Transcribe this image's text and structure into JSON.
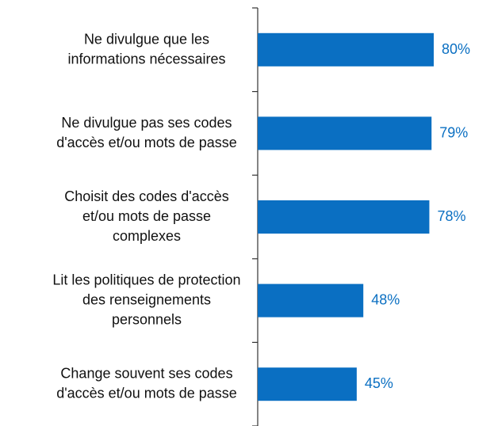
{
  "chart_data": {
    "type": "hbar",
    "categories": [
      "Ne divulgue que les\ninformations nécessaires",
      "Ne divulgue pas ses codes\nd'accès et/ou mots de passe",
      "Choisit des codes d'accès\net/ou mots de passe\ncomplexes",
      "Lit les politiques de protection\ndes renseignements\npersonnels",
      "Change souvent ses codes\nd'accès et/ou mots de passe"
    ],
    "values": [
      80,
      79,
      78,
      48,
      45
    ],
    "value_labels": [
      "80%",
      "79%",
      "78%",
      "48%",
      "45%"
    ],
    "color": "#0a6fc2",
    "xlim": [
      0,
      100
    ]
  }
}
